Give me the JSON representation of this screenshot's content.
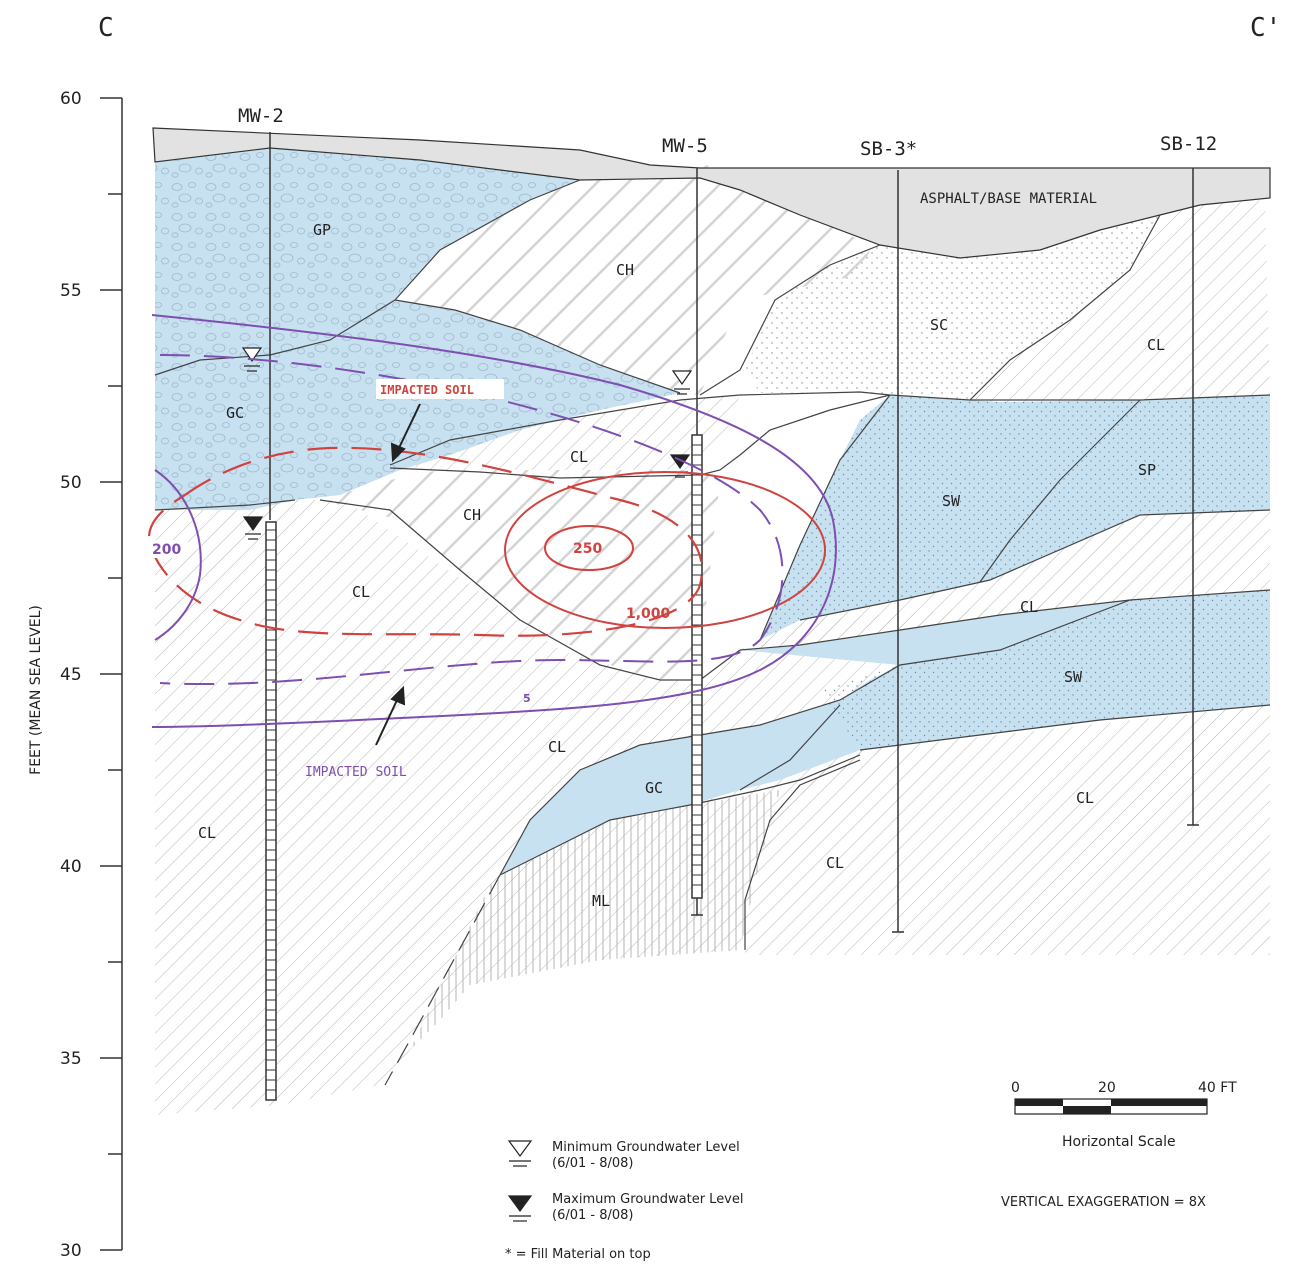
{
  "section": {
    "left_label": "C",
    "right_label": "C'"
  },
  "axis": {
    "label": "FEET (MEAN SEA LEVEL)",
    "ticks": [
      "60",
      "55",
      "50",
      "45",
      "40",
      "35",
      "30"
    ],
    "range": [
      30,
      60
    ]
  },
  "wells": [
    {
      "name": "MW-2"
    },
    {
      "name": "MW-5"
    },
    {
      "name": "SB-3*"
    },
    {
      "name": "SB-12"
    }
  ],
  "units": {
    "asphalt": "ASPHALT/BASE MATERIAL",
    "gp": "GP",
    "gc_upper": "GC",
    "ch_upper": "CH",
    "sc": "SC",
    "cl_right_upper": "CL",
    "cl_mid": "CL",
    "sp": "SP",
    "ch_mid": "CH",
    "sw_upper": "SW",
    "cl_left": "CL",
    "cl_between_sw": "CL",
    "sw_lower": "SW",
    "cl_center": "CL",
    "gc_lower": "GC",
    "cl_bottom_left": "CL",
    "cl_bottom_right": "CL",
    "cl_bottom_center": "CL",
    "ml": "ML"
  },
  "contours": {
    "impacted_red": "IMPACTED SOIL",
    "impacted_purple": "IMPACTED SOIL",
    "c250": "250",
    "c1000": "1,000",
    "c200": "200",
    "c5": "5"
  },
  "scale": {
    "t0": "0",
    "t20": "20",
    "t40": "40 FT",
    "label": "Horizontal Scale",
    "exaggeration": "VERTICAL EXAGGERATION = 8X"
  },
  "legend": {
    "min_title": "Minimum Groundwater Level",
    "min_dates": "(6/01 - 8/08)",
    "max_title": "Maximum Groundwater Level",
    "max_dates": "(6/01 - 8/08)",
    "fill_note": "* = Fill Material on top"
  },
  "colors": {
    "gravel_blue": "#c7e1f1",
    "asphalt_gray": "#e2e2e2",
    "contour_red": "#d0433f",
    "contour_purple": "#7e4fb0"
  }
}
